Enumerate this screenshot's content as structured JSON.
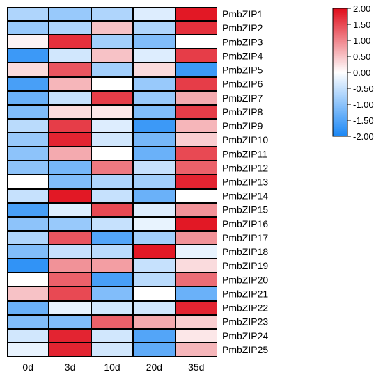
{
  "chart_data": {
    "type": "heatmap",
    "title": "",
    "xlabel": "",
    "ylabel": "",
    "columns": [
      "0d",
      "3d",
      "10d",
      "20d",
      "35d"
    ],
    "rows": [
      "PmbZIP1",
      "PmbZIP2",
      "PmbZIP3",
      "PmbZIP4",
      "PmbZIP5",
      "PmbZIP6",
      "PmbZIP7",
      "PmbZIP8",
      "PmbZIP9",
      "PmbZIP10",
      "PmbZIP11",
      "PmbZIP12",
      "PmbZIP13",
      "PmbZIP14",
      "PmbZIP15",
      "PmbZIP16",
      "PmbZIP17",
      "PmbZIP18",
      "PmbZIP19",
      "PmbZIP20",
      "PmbZIP21",
      "PmbZIP22",
      "PmbZIP23",
      "PmbZIP24",
      "PmbZIP25"
    ],
    "values": [
      [
        -0.7,
        -0.9,
        -0.7,
        -0.3,
        1.9
      ],
      [
        -0.9,
        -0.7,
        0.5,
        -0.7,
        1.7
      ],
      [
        0.1,
        1.7,
        -0.8,
        -1.1,
        0.0
      ],
      [
        -1.7,
        -0.4,
        0.5,
        -0.3,
        1.6
      ],
      [
        0.3,
        1.4,
        -0.8,
        0.3,
        -1.7
      ],
      [
        -1.6,
        0.6,
        0.0,
        -0.9,
        1.6
      ],
      [
        -1.3,
        -0.5,
        1.6,
        -0.9,
        0.7
      ],
      [
        -1.1,
        0.3,
        0.2,
        -1.1,
        1.6
      ],
      [
        -0.6,
        1.6,
        -0.3,
        -1.7,
        0.6
      ],
      [
        -0.9,
        1.8,
        -0.4,
        -1.2,
        0.4
      ],
      [
        -1.0,
        0.7,
        0.0,
        -1.3,
        1.5
      ],
      [
        -1.0,
        -1.2,
        1.1,
        -0.5,
        1.3
      ],
      [
        0.0,
        -1.1,
        -0.7,
        -0.8,
        1.8
      ],
      [
        -0.5,
        1.9,
        -0.5,
        -1.3,
        0.0
      ],
      [
        -1.6,
        -0.3,
        1.5,
        -0.3,
        0.9
      ],
      [
        -1.0,
        -0.9,
        -0.5,
        -0.2,
        1.9
      ],
      [
        -0.7,
        1.4,
        -1.5,
        -0.8,
        0.9
      ],
      [
        -1.1,
        -0.5,
        -0.6,
        1.9,
        -0.2
      ],
      [
        -1.8,
        0.9,
        0.8,
        -0.5,
        0.3
      ],
      [
        0.0,
        1.3,
        -1.6,
        -0.6,
        1.2
      ],
      [
        0.5,
        1.5,
        -1.1,
        0.0,
        -1.3
      ],
      [
        -1.3,
        -0.2,
        -0.4,
        -0.4,
        1.8
      ],
      [
        -1.1,
        -1.1,
        1.3,
        0.7,
        0.4
      ],
      [
        -0.4,
        1.8,
        -0.4,
        -1.5,
        0.2
      ],
      [
        -0.2,
        1.8,
        -0.4,
        -1.4,
        0.6
      ]
    ],
    "color_scale": {
      "min": -2.0,
      "max": 2.0,
      "low_color": "#1a87f5",
      "mid_color": "#ffffff",
      "high_color": "#e00c1a",
      "ticks": [
        "2.00",
        "1.50",
        "1.00",
        "0.50",
        "0.00",
        "-0.50",
        "-1.00",
        "-1.50",
        "-2.00"
      ]
    },
    "legend_placement": "top-right"
  }
}
